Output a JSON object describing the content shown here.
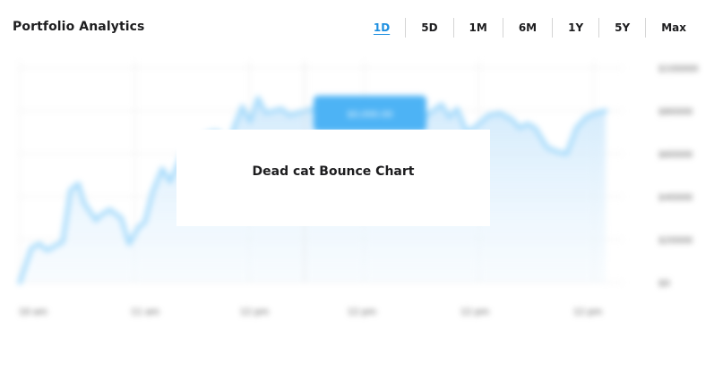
{
  "header": {
    "title": "Portfolio Analytics"
  },
  "range_tabs": [
    {
      "label": "1D",
      "active": true
    },
    {
      "label": "5D",
      "active": false
    },
    {
      "label": "1M",
      "active": false
    },
    {
      "label": "6M",
      "active": false
    },
    {
      "label": "1Y",
      "active": false
    },
    {
      "label": "5Y",
      "active": false
    },
    {
      "label": "Max",
      "active": false
    }
  ],
  "overlay": {
    "message": "Dead cat Bounce Chart"
  },
  "colors": {
    "accent": "#1d8fe0",
    "line": "#a9dcfb",
    "fill": "#e3f2fd",
    "tooltip": "#4db3f5"
  },
  "chart_data": {
    "type": "area",
    "title": "",
    "xlabel": "",
    "ylabel": "",
    "x_ticks": [
      "10 am",
      "11 am",
      "12 pm",
      "12 pm",
      "12 pm",
      "12 pm"
    ],
    "y_ticks": [
      "$0",
      "$20000",
      "$40000",
      "$60000",
      "$80000",
      "$100000"
    ],
    "ylim": [
      0,
      100000
    ],
    "grid": true,
    "tooltip": {
      "label": "$0,000.00",
      "x": 8.1,
      "y": 83000
    },
    "x": [
      0,
      0.6,
      1.0,
      1.4,
      2.2,
      2.6,
      3.0,
      3.3,
      3.9,
      4.1,
      4.6,
      5.2,
      5.6,
      6.1,
      6.4,
      6.8,
      7.3,
      7.7,
      8.1,
      8.5,
      8.9,
      9.4,
      9.8,
      10.2,
      10.6,
      11.0,
      11.4,
      11.8,
      12.2,
      12.6,
      13.0,
      13.4,
      13.8,
      14.2,
      14.6,
      15.0,
      15.4,
      15.9,
      16.5,
      17.0,
      17.6,
      18.2,
      18.8,
      19.3,
      19.8,
      20.4,
      21.0,
      21.6,
      22.0,
      22.4,
      22.9,
      23.4,
      24.0,
      24.6,
      25.2,
      25.6,
      26.0,
      26.4,
      27.0,
      27.5,
      28.0,
      28.5,
      29.0,
      29.5,
      30.0
    ],
    "values": [
      0,
      16000,
      18000,
      15000,
      19000,
      43000,
      46000,
      37000,
      29000,
      31000,
      34000,
      30000,
      18000,
      26000,
      28000,
      42000,
      53000,
      47000,
      55000,
      64000,
      62000,
      68000,
      70000,
      70000,
      62000,
      73000,
      82000,
      75000,
      86000,
      79000,
      80000,
      81000,
      78000,
      79000,
      80000,
      81000,
      79000,
      78000,
      76000,
      75000,
      74000,
      73000,
      72000,
      73000,
      78000,
      74000,
      79000,
      83000,
      77000,
      81000,
      70000,
      73000,
      78000,
      79000,
      76000,
      72000,
      74000,
      72000,
      63000,
      61000,
      60000,
      72000,
      77000,
      79000,
      80000
    ]
  }
}
